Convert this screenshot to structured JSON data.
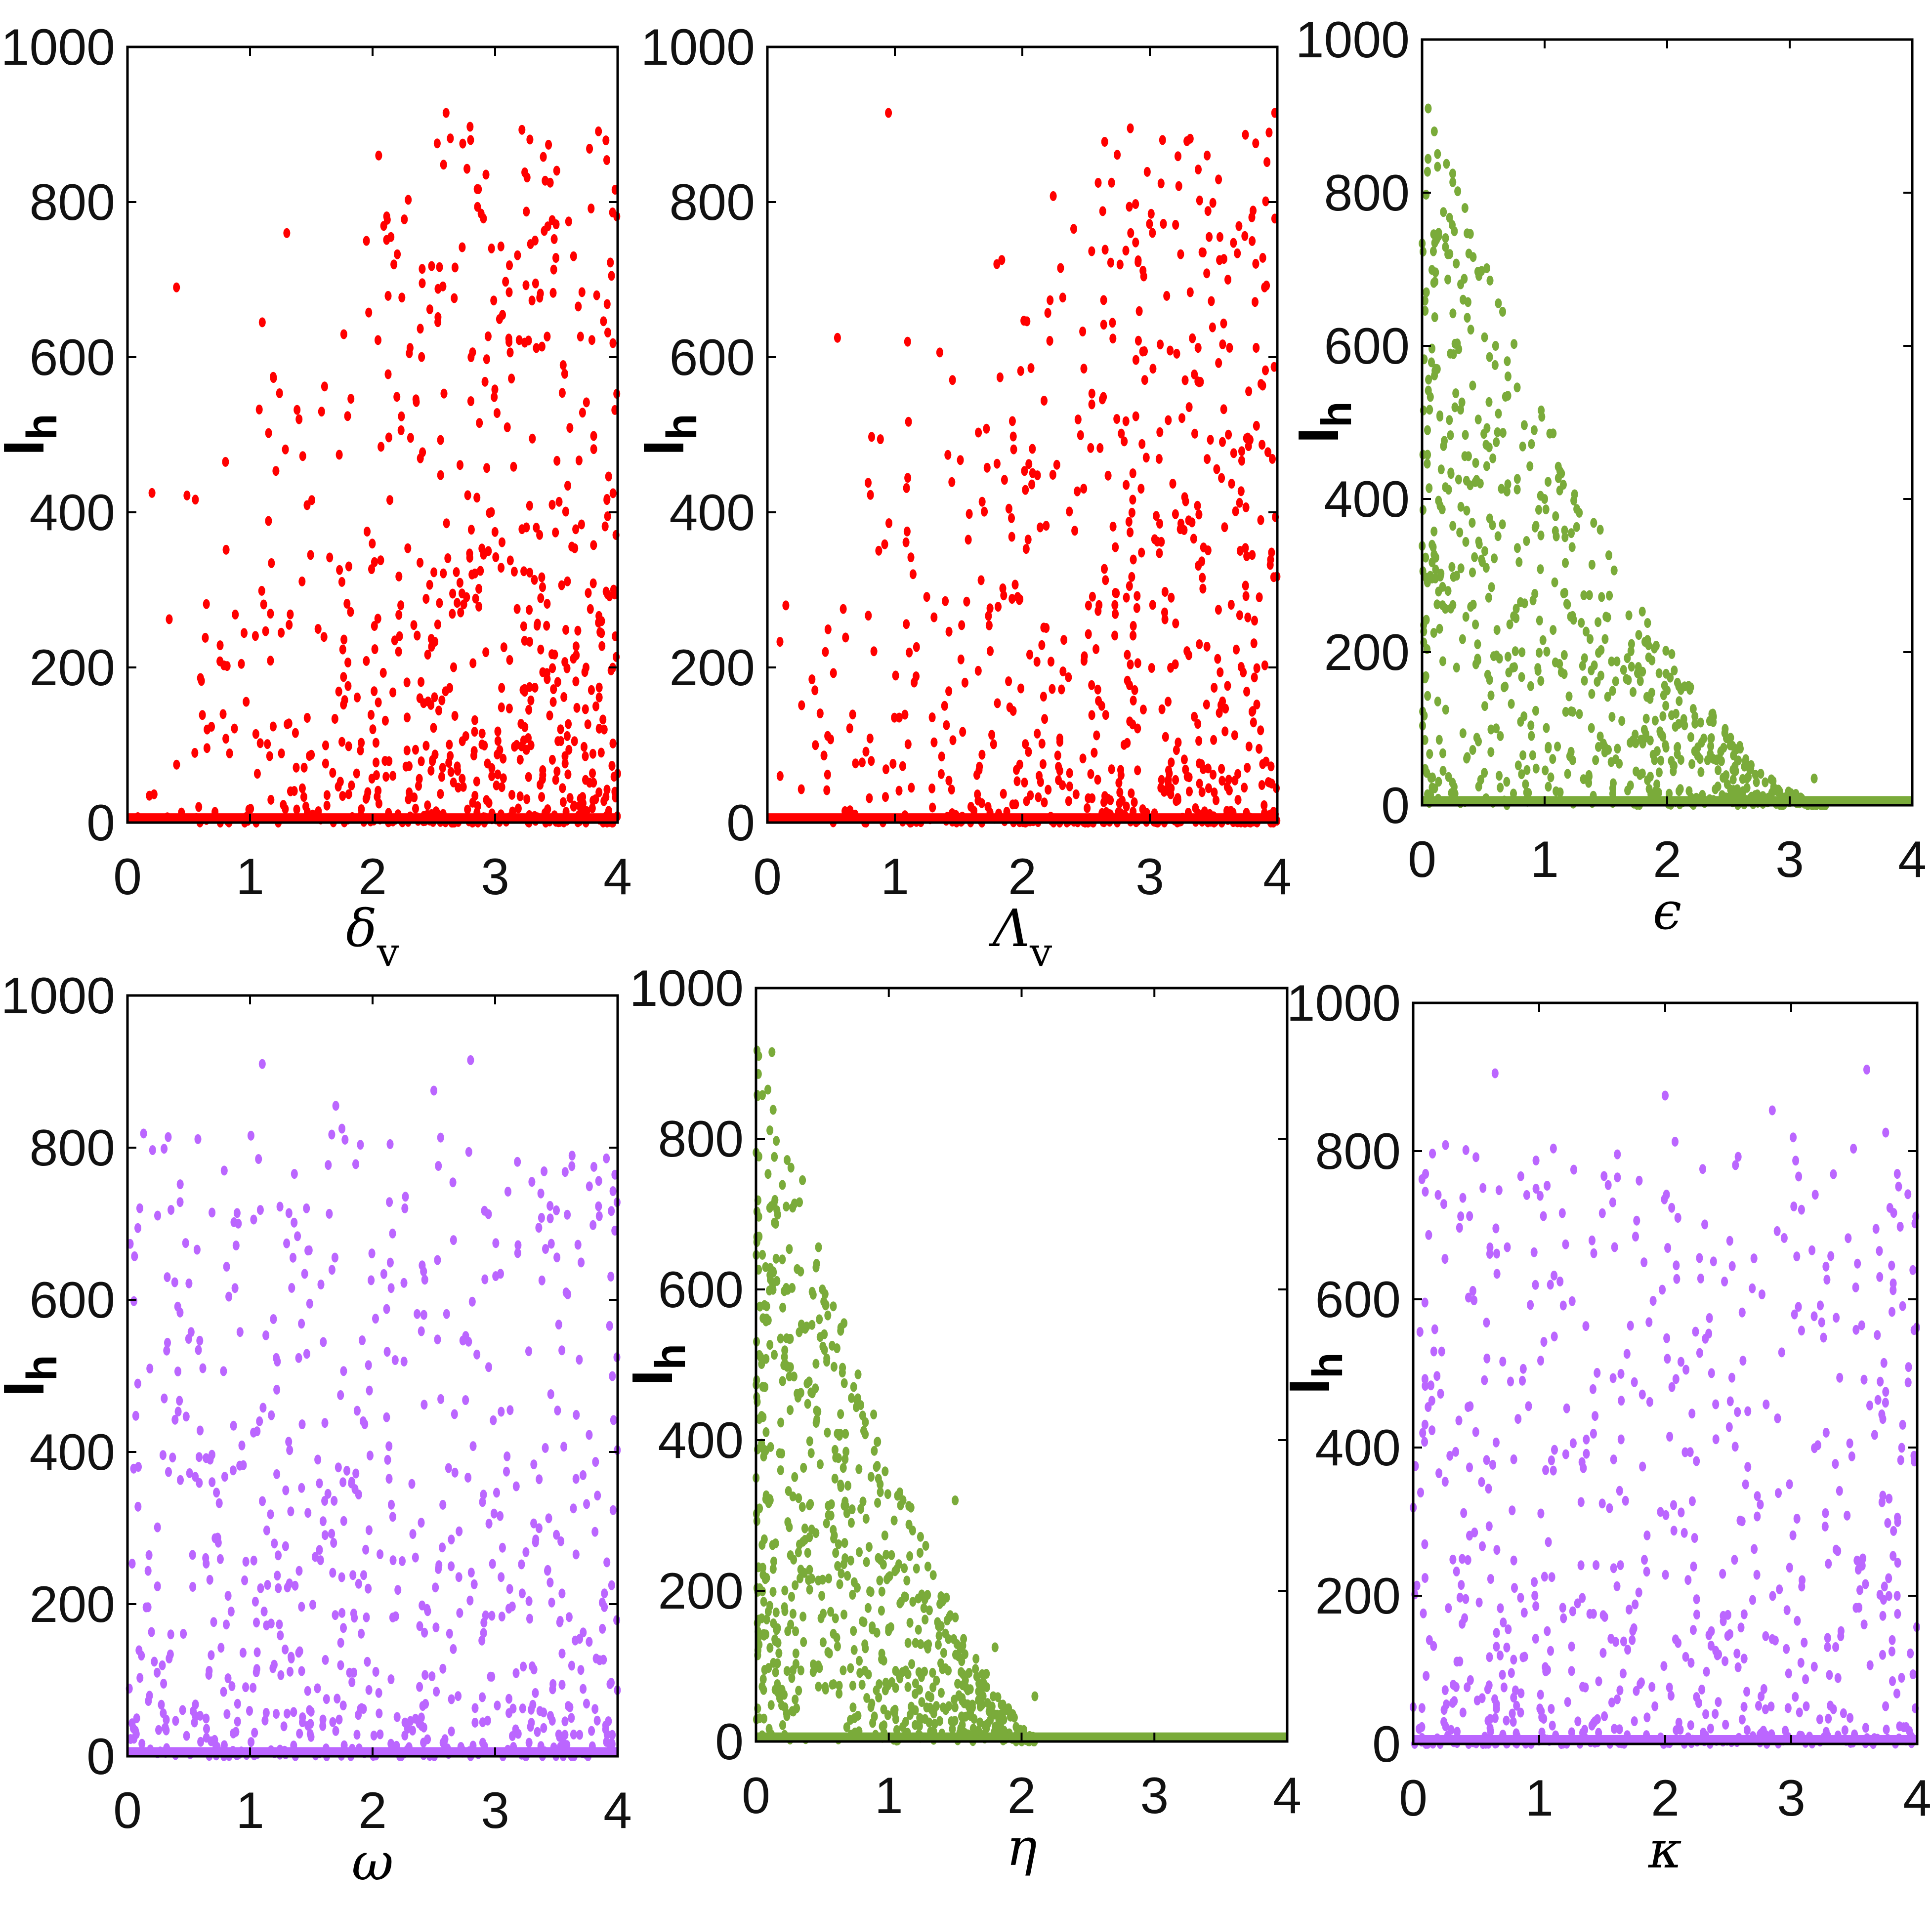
{
  "figure": {
    "layout": "2x3 grid of scatter plots"
  },
  "chart_data": [
    {
      "type": "scatter",
      "panel": "top-left",
      "xlabel": "δ",
      "xlabel_sub": "v",
      "ylabel": "I",
      "ylabel_sub": "h",
      "xlim": [
        0,
        4
      ],
      "ylim": [
        0,
        1000
      ],
      "xticks": [
        "0",
        "1",
        "2",
        "3",
        "4"
      ],
      "yticks": [
        "0",
        "200",
        "400",
        "600",
        "800",
        "1000"
      ],
      "color": "#ff0000",
      "trend": "uniform-high",
      "n_points": 720,
      "seed": 11,
      "x": [
        0.2,
        0.4,
        0.65,
        0.8,
        1.1,
        1.3,
        1.4,
        1.95,
        2.05,
        2.15,
        2.3,
        2.6,
        2.8,
        3.45,
        3.6,
        3.95
      ],
      "y": [
        425,
        690,
        120,
        465,
        645,
        760,
        520,
        750,
        860,
        755,
        605,
        915,
        880,
        825,
        775,
        705
      ],
      "series": [
        {
          "name": "I_h vs δ_v",
          "values": "scatter samples"
        }
      ]
    },
    {
      "type": "scatter",
      "panel": "top-middle",
      "xlabel": "Λ",
      "xlabel_sub": "v",
      "ylabel": "I",
      "ylabel_sub": "h",
      "xlim": [
        0,
        4
      ],
      "ylim": [
        0,
        1000
      ],
      "xticks": [
        "0",
        "1",
        "2",
        "3",
        "4"
      ],
      "yticks": [
        "0",
        "200",
        "400",
        "600",
        "800",
        "1000"
      ],
      "color": "#ff0000",
      "trend": "uniform-high",
      "n_points": 720,
      "seed": 23,
      "x": [
        0.1,
        0.55,
        0.95,
        1.1,
        1.8,
        2.3,
        2.7,
        2.85,
        3.1,
        3.45,
        3.55,
        3.9,
        3.98
      ],
      "y": [
        60,
        625,
        915,
        620,
        720,
        715,
        825,
        760,
        880,
        860,
        755,
        690,
        915
      ],
      "series": [
        {
          "name": "I_h vs Λ_v",
          "values": "scatter samples"
        }
      ]
    },
    {
      "type": "scatter",
      "panel": "top-right",
      "xlabel": "ϵ",
      "xlabel_sub": "",
      "ylabel": "I",
      "ylabel_sub": "h",
      "xlim": [
        0,
        4
      ],
      "ylim": [
        0,
        1000
      ],
      "xticks": [
        "0",
        "1",
        "2",
        "3",
        "4"
      ],
      "yticks": [
        "0",
        "200",
        "400",
        "600",
        "800",
        "1000"
      ],
      "color": "#7aab3a",
      "trend": "decay-3.3",
      "n_points": 720,
      "seed": 37,
      "x": [
        0.05,
        0.1,
        0.25,
        0.35,
        0.6,
        1.0,
        2.0,
        2.8,
        3.2
      ],
      "y": [
        910,
        880,
        825,
        780,
        600,
        400,
        150,
        30,
        35
      ],
      "series": [
        {
          "name": "I_h vs ϵ",
          "values": "scatter samples"
        }
      ]
    },
    {
      "type": "scatter",
      "panel": "bottom-left",
      "xlabel": "ω",
      "xlabel_sub": "",
      "ylabel": "I",
      "ylabel_sub": "h",
      "xlim": [
        0,
        4
      ],
      "ylim": [
        0,
        1000
      ],
      "xticks": [
        "0",
        "1",
        "2",
        "3",
        "4"
      ],
      "yticks": [
        "0",
        "200",
        "400",
        "600",
        "800",
        "1000"
      ],
      "color": "#bb66ff",
      "trend": "uniform-low",
      "n_points": 720,
      "seed": 41,
      "x": [
        1.1,
        1.7,
        1.75,
        2.5,
        2.8,
        3.3,
        3.85
      ],
      "y": [
        910,
        855,
        825,
        875,
        915,
        755,
        710
      ],
      "series": [
        {
          "name": "I_h vs ω",
          "values": "scatter samples"
        }
      ]
    },
    {
      "type": "scatter",
      "panel": "bottom-middle",
      "xlabel": "η",
      "xlabel_sub": "",
      "ylabel": "I",
      "ylabel_sub": "h",
      "xlim": [
        0,
        4
      ],
      "ylim": [
        0,
        1000
      ],
      "xticks": [
        "0",
        "1",
        "2",
        "3",
        "4"
      ],
      "yticks": [
        "0",
        "200",
        "400",
        "600",
        "800",
        "1000"
      ],
      "color": "#7aab3a",
      "trend": "decay-2.1",
      "n_points": 720,
      "seed": 53,
      "x": [
        0.02,
        0.12,
        0.35,
        0.5,
        1.5,
        1.8,
        2.1
      ],
      "y": [
        910,
        915,
        745,
        600,
        320,
        125,
        60
      ],
      "series": [
        {
          "name": "I_h vs η",
          "values": "scatter samples"
        }
      ]
    },
    {
      "type": "scatter",
      "panel": "bottom-right",
      "xlabel": "κ",
      "xlabel_sub": "",
      "ylabel": "I",
      "ylabel_sub": "h",
      "xlim": [
        0,
        4
      ],
      "ylim": [
        0,
        1000
      ],
      "xticks": [
        "0",
        "1",
        "2",
        "3",
        "4"
      ],
      "yticks": [
        "0",
        "200",
        "400",
        "600",
        "800",
        "1000"
      ],
      "color": "#bb66ff",
      "trend": "uniform-low",
      "n_points": 720,
      "seed": 67,
      "x": [
        0.65,
        2.0,
        2.85,
        3.6,
        3.75
      ],
      "y": [
        905,
        875,
        855,
        910,
        825
      ],
      "series": [
        {
          "name": "I_h vs κ",
          "values": "scatter samples"
        }
      ]
    }
  ]
}
